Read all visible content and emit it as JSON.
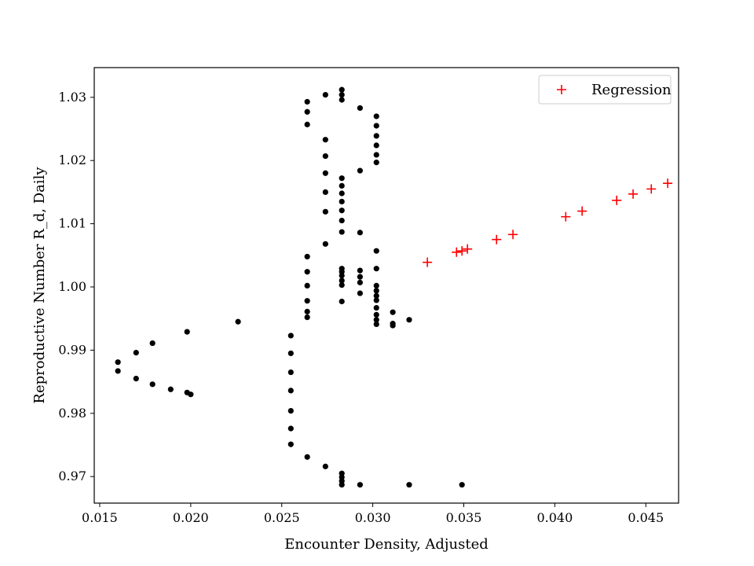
{
  "chart_data": {
    "type": "scatter",
    "title": "",
    "xlabel": "Encounter Density, Adjusted",
    "ylabel": "Reproductive Number R_d, Daily",
    "xlim": [
      0.0147,
      0.0468
    ],
    "ylim": [
      0.9658,
      1.0347
    ],
    "xticks": [
      0.015,
      0.02,
      0.025,
      0.03,
      0.035,
      0.04,
      0.045
    ],
    "xtick_labels": [
      "0.015",
      "0.020",
      "0.025",
      "0.030",
      "0.035",
      "0.040",
      "0.045"
    ],
    "yticks": [
      0.97,
      0.98,
      0.99,
      1.0,
      1.01,
      1.02,
      1.03
    ],
    "ytick_labels": [
      "0.97",
      "0.98",
      "0.99",
      "1.00",
      "1.01",
      "1.02",
      "1.03"
    ],
    "grid": false,
    "legend_position": "upper right",
    "series": [
      {
        "name": "",
        "marker": "dot",
        "color": "#000000",
        "x": [
          0.0283,
          0.0283,
          0.0283,
          0.0274,
          0.0264,
          0.0264,
          0.0264,
          0.0293,
          0.0302,
          0.0302,
          0.0302,
          0.0302,
          0.0302,
          0.0302,
          0.0274,
          0.0274,
          0.0274,
          0.0274,
          0.0274,
          0.0274,
          0.0293,
          0.0283,
          0.0283,
          0.0283,
          0.0283,
          0.0283,
          0.0283,
          0.0283,
          0.0283,
          0.0293,
          0.0302,
          0.0264,
          0.0302,
          0.0264,
          0.0283,
          0.0283,
          0.0283,
          0.0283,
          0.0293,
          0.0293,
          0.0293,
          0.0264,
          0.0302,
          0.0302,
          0.0293,
          0.0302,
          0.0302,
          0.0302,
          0.0283,
          0.0264,
          0.0264,
          0.0302,
          0.0302,
          0.0302,
          0.0311,
          0.0311,
          0.0311,
          0.032,
          0.0264,
          0.0226,
          0.0198,
          0.0255,
          0.0179,
          0.016,
          0.0255,
          0.017,
          0.016,
          0.0255,
          0.017,
          0.0179,
          0.0189,
          0.0255,
          0.0198,
          0.02,
          0.0255,
          0.0255,
          0.0255,
          0.0264,
          0.0274,
          0.0283,
          0.0283,
          0.0283,
          0.0283,
          0.0293,
          0.032,
          0.0349
        ],
        "y": [
          1.0312,
          1.0304,
          1.0296,
          1.0304,
          1.0293,
          1.0277,
          1.0257,
          1.0283,
          1.027,
          1.0255,
          1.0239,
          1.0224,
          1.0209,
          1.0197,
          1.0233,
          1.0207,
          1.018,
          1.015,
          1.0119,
          1.0068,
          1.0184,
          1.0172,
          1.016,
          1.0148,
          1.0135,
          1.0121,
          1.0105,
          1.0087,
          1.0029,
          1.0086,
          1.0057,
          1.0048,
          1.0029,
          1.0024,
          1.0024,
          1.0018,
          1.001,
          1.0003,
          1.0026,
          1.0016,
          1.0007,
          1.0002,
          1.0002,
          0.9994,
          0.999,
          0.9986,
          0.9979,
          0.9967,
          0.9977,
          0.9978,
          0.9961,
          0.9956,
          0.9948,
          0.9941,
          0.996,
          0.9942,
          0.9939,
          0.9948,
          0.9952,
          0.9945,
          0.9929,
          0.9923,
          0.9911,
          0.9881,
          0.9895,
          0.9896,
          0.9867,
          0.9865,
          0.9855,
          0.9846,
          0.9838,
          0.9836,
          0.9833,
          0.983,
          0.9804,
          0.9776,
          0.9751,
          0.9731,
          0.9716,
          0.9705,
          0.9699,
          0.9693,
          0.9687,
          0.9687,
          0.9687,
          0.9687
        ]
      },
      {
        "name": "Regression",
        "marker": "plus",
        "color": "#ff0000",
        "x": [
          0.033,
          0.0346,
          0.0349,
          0.0352,
          0.0368,
          0.0377,
          0.0406,
          0.0415,
          0.0434,
          0.0443,
          0.0453,
          0.0462
        ],
        "y": [
          1.0039,
          1.0055,
          1.0057,
          1.006,
          1.0075,
          1.0083,
          1.0111,
          1.012,
          1.0137,
          1.0147,
          1.0155,
          1.0164
        ]
      }
    ]
  }
}
